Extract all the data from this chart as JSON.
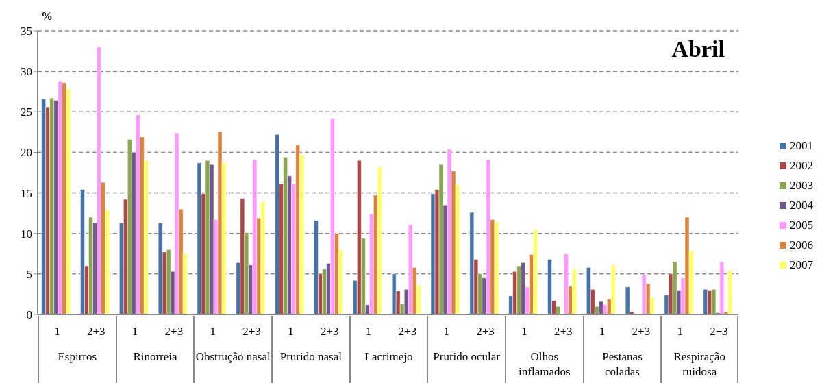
{
  "chart_data": {
    "type": "bar",
    "title": "Abril",
    "ylabel": "%",
    "categories": [
      "1",
      "2+3",
      "1",
      "2+3",
      "1",
      "2+3",
      "1",
      "2+3",
      "1",
      "2+3",
      "1",
      "2+3",
      "1",
      "2+3",
      "1",
      "2+3",
      "1",
      "2+3"
    ],
    "annotations": [
      "Espirros",
      "Rinorreia",
      "Obstrução nasal",
      "Prurido nasal",
      "Lacrimejo",
      "Prurido ocular",
      "Olhos inflamados",
      "Pestanas coladas",
      "Respiração ruidosa"
    ],
    "series": [
      {
        "name": "2001",
        "color": "#4572a7",
        "values": [
          26.6,
          15.4,
          11.3,
          11.3,
          18.7,
          6.4,
          22.2,
          11.6,
          4.2,
          5.0,
          14.9,
          12.6,
          2.3,
          6.8,
          5.8,
          3.4,
          2.4,
          3.1
        ]
      },
      {
        "name": "2002",
        "color": "#aa4643",
        "values": [
          25.6,
          6.0,
          14.2,
          7.7,
          14.9,
          14.3,
          16.1,
          5.0,
          19.0,
          2.9,
          15.4,
          6.8,
          5.3,
          1.7,
          3.1,
          0.3,
          5.0,
          3.0
        ]
      },
      {
        "name": "2003",
        "color": "#89a54e",
        "values": [
          26.7,
          12.0,
          21.6,
          8.0,
          19.0,
          10.1,
          19.4,
          5.6,
          9.4,
          1.3,
          18.5,
          5.0,
          6.0,
          1.0,
          1.0,
          0,
          6.5,
          3.1
        ]
      },
      {
        "name": "2004",
        "color": "#71588f",
        "values": [
          26.4,
          11.3,
          20.0,
          5.3,
          18.5,
          6.1,
          17.1,
          6.3,
          1.2,
          3.1,
          13.5,
          4.5,
          6.4,
          0,
          1.6,
          0,
          3.0,
          0.2
        ]
      },
      {
        "name": "2005",
        "color": "#ff99ff",
        "values": [
          28.8,
          33.0,
          24.6,
          22.4,
          11.7,
          19.1,
          16.1,
          24.2,
          12.4,
          11.1,
          20.4,
          19.1,
          3.4,
          7.5,
          1.2,
          4.9,
          4.5,
          6.5
        ]
      },
      {
        "name": "2006",
        "color": "#db843d",
        "values": [
          28.6,
          16.3,
          21.9,
          13.0,
          22.6,
          11.9,
          20.9,
          10.0,
          14.7,
          5.8,
          17.7,
          11.7,
          7.4,
          3.5,
          1.9,
          3.8,
          12.0,
          0.3
        ]
      },
      {
        "name": "2007",
        "color": "#ffff66",
        "values": [
          27.8,
          12.9,
          19.0,
          7.5,
          18.7,
          13.9,
          19.7,
          8.0,
          18.2,
          3.6,
          16.0,
          11.4,
          10.5,
          5.6,
          6.1,
          2.1,
          7.8,
          5.4
        ]
      }
    ],
    "ylim": [
      0,
      35
    ],
    "yticks": [
      0,
      5,
      10,
      15,
      20,
      25,
      30,
      35
    ],
    "grid": "y",
    "legend": "right"
  }
}
